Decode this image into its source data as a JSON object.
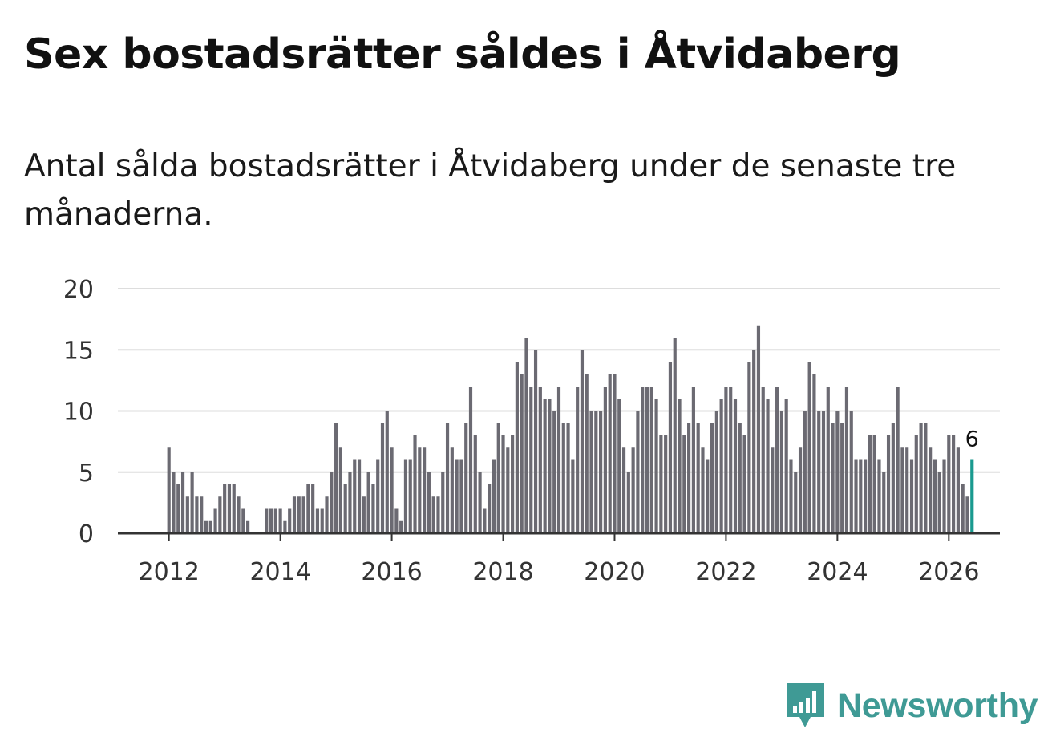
{
  "title": "Sex bostadsrätter såldes i Åtvidaberg",
  "subtitle": "Antal sålda bostadsrätter i Åtvidaberg under de senaste tre månaderna.",
  "brand": {
    "name": "Newsworthy",
    "icon": "newsworthy-bar-chart-icon"
  },
  "colors": {
    "bar": "#6b6a72",
    "highlight": "#1a9a8f",
    "grid": "#dddddd",
    "axis": "#333333",
    "brand": "#3f9a95"
  },
  "chart_data": {
    "type": "bar",
    "title": "Sex bostadsrätter såldes i Åtvidaberg",
    "xlabel": "",
    "ylabel": "",
    "ylim": [
      0,
      20
    ],
    "y_ticks": [
      "0",
      "5",
      "10",
      "15",
      "20"
    ],
    "x_ticks": [
      "2012",
      "2014",
      "2016",
      "2018",
      "2020",
      "2022",
      "2024",
      "2026"
    ],
    "start_month": "2012-01",
    "end_month": "2026-03",
    "x_domain": [
      "2011-02",
      "2026-12"
    ],
    "series": [
      {
        "name": "Sålda bostadsrätter",
        "values": [
          7,
          5,
          4,
          5,
          3,
          5,
          3,
          3,
          1,
          1,
          2,
          3,
          4,
          4,
          4,
          3,
          2,
          1,
          0,
          0,
          0,
          2,
          2,
          2,
          2,
          1,
          2,
          3,
          3,
          3,
          4,
          4,
          2,
          2,
          3,
          5,
          9,
          7,
          4,
          5,
          6,
          6,
          3,
          5,
          4,
          6,
          9,
          10,
          7,
          2,
          1,
          6,
          6,
          8,
          7,
          7,
          5,
          3,
          3,
          5,
          9,
          7,
          6,
          6,
          9,
          12,
          8,
          5,
          2,
          4,
          6,
          9,
          8,
          7,
          8,
          14,
          13,
          16,
          12,
          15,
          12,
          11,
          11,
          10,
          12,
          9,
          9,
          6,
          12,
          15,
          13,
          10,
          10,
          10,
          12,
          13,
          13,
          11,
          7,
          5,
          7,
          10,
          12,
          12,
          12,
          11,
          8,
          8,
          14,
          16,
          11,
          8,
          9,
          12,
          9,
          7,
          6,
          9,
          10,
          11,
          12,
          12,
          11,
          9,
          8,
          14,
          15,
          17,
          12,
          11,
          7,
          12,
          10,
          11,
          6,
          5,
          7,
          10,
          14,
          13,
          10,
          10,
          12,
          9,
          10,
          9,
          12,
          10,
          6,
          6,
          6,
          8,
          8,
          6,
          5,
          8,
          9,
          12,
          7,
          7,
          6,
          8,
          9,
          9,
          7,
          6,
          5,
          6,
          8,
          8,
          7,
          4,
          3,
          6
        ]
      }
    ],
    "highlight": {
      "index": "last",
      "label": "6"
    }
  }
}
